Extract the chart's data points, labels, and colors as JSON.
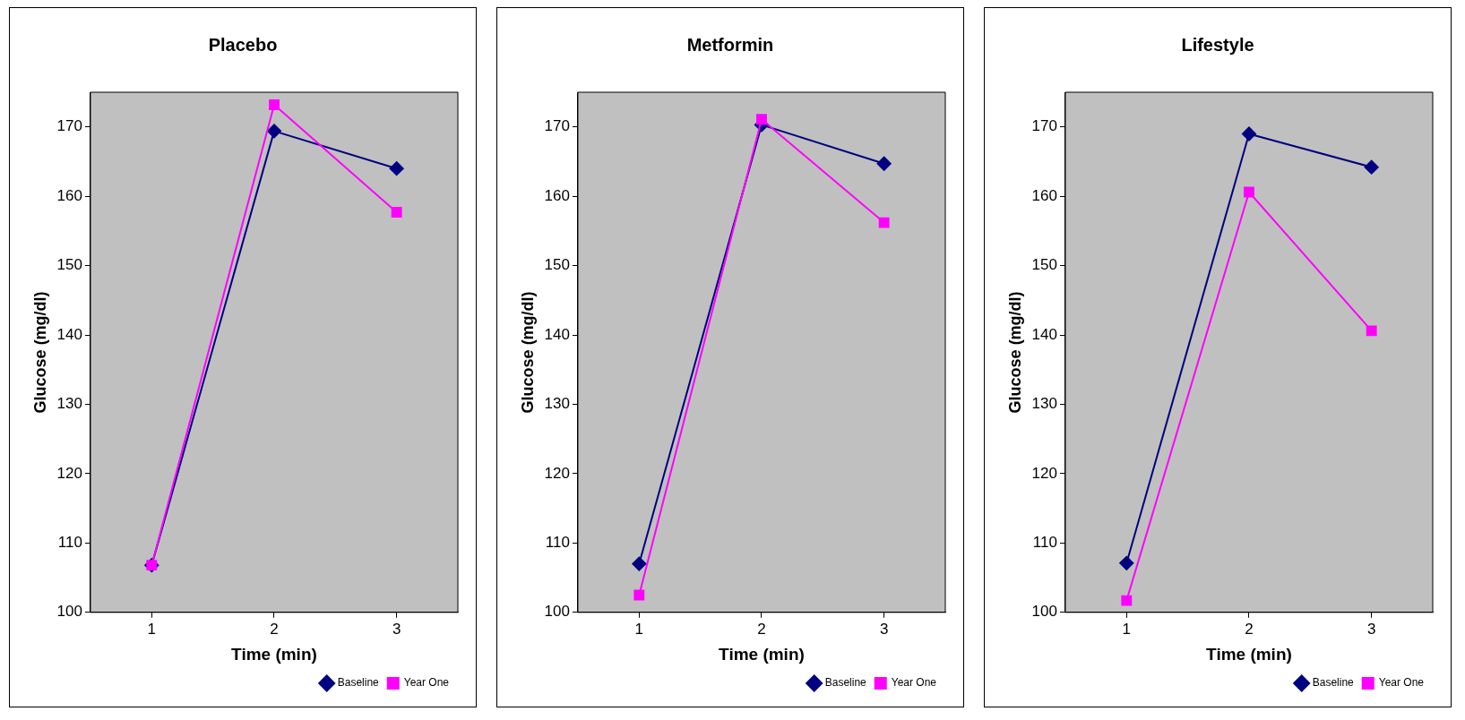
{
  "chart_data": [
    {
      "type": "line",
      "title": "Placebo",
      "xlabel": "Time (min)",
      "ylabel": "Glucose (mg/dl)",
      "categories": [
        "1",
        "2",
        "3"
      ],
      "ylim": [
        100,
        175
      ],
      "yticks": [
        100,
        110,
        120,
        130,
        140,
        150,
        160,
        170
      ],
      "grid": false,
      "legend": "bottom right",
      "series": [
        {
          "name": "Baseline",
          "color": "#000080",
          "marker": "diamond",
          "values": [
            106.8,
            169.4,
            164.0
          ]
        },
        {
          "name": "Year One",
          "color": "#ff00ff",
          "marker": "square",
          "values": [
            106.8,
            173.2,
            157.7
          ]
        }
      ]
    },
    {
      "type": "line",
      "title": "Metformin",
      "xlabel": "Time (min)",
      "ylabel": "Glucose (mg/dl)",
      "categories": [
        "1",
        "2",
        "3"
      ],
      "ylim": [
        100,
        175
      ],
      "yticks": [
        100,
        110,
        120,
        130,
        140,
        150,
        160,
        170
      ],
      "grid": false,
      "legend": "bottom right",
      "series": [
        {
          "name": "Baseline",
          "color": "#000080",
          "marker": "diamond",
          "values": [
            107.0,
            170.3,
            164.7
          ]
        },
        {
          "name": "Year One",
          "color": "#ff00ff",
          "marker": "square",
          "values": [
            102.5,
            171.1,
            156.2
          ]
        }
      ]
    },
    {
      "type": "line",
      "title": "Lifestyle",
      "xlabel": "Time (min)",
      "ylabel": "Glucose (mg/dl)",
      "categories": [
        "1",
        "2",
        "3"
      ],
      "ylim": [
        100,
        175
      ],
      "yticks": [
        100,
        110,
        120,
        130,
        140,
        150,
        160,
        170
      ],
      "grid": false,
      "legend": "bottom right",
      "series": [
        {
          "name": "Baseline",
          "color": "#000080",
          "marker": "diamond",
          "values": [
            107.1,
            169.0,
            164.2
          ]
        },
        {
          "name": "Year One",
          "color": "#ff00ff",
          "marker": "square",
          "values": [
            101.7,
            160.6,
            140.6
          ]
        }
      ]
    }
  ]
}
